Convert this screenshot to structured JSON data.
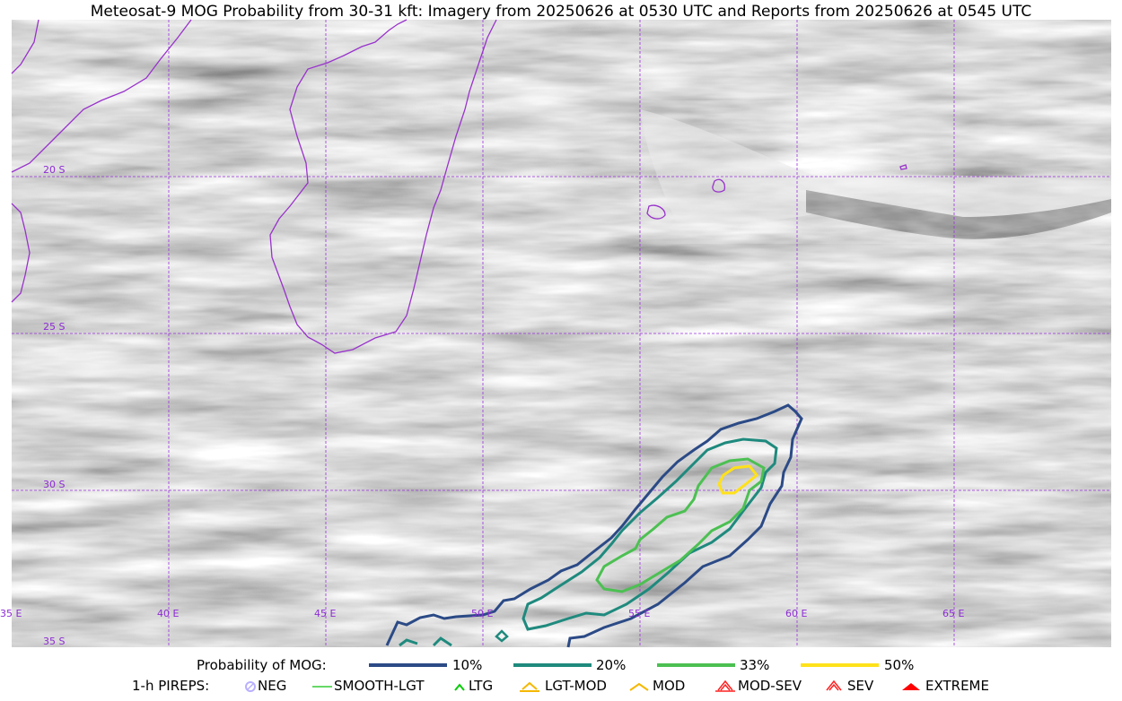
{
  "title": "Meteosat-9 MOG Probability from 30-31 kft: Imagery from 20250626 at 0530 UTC and Reports from 20250626 at 0545 UTC",
  "lat_labels": [
    "20 S",
    "25 S",
    "30 S",
    "35 S"
  ],
  "lon_labels": [
    "35 E",
    "40 E",
    "45 E",
    "50 E",
    "55 E",
    "60 E",
    "65 E"
  ],
  "legend_probability": {
    "heading": "Probability of MOG:",
    "items": [
      {
        "label": "10%",
        "color": "#2b4a86"
      },
      {
        "label": "20%",
        "color": "#1f8a7e"
      },
      {
        "label": "33%",
        "color": "#4cc052"
      },
      {
        "label": "50%",
        "color": "#ffe11a"
      }
    ]
  },
  "legend_pireps": {
    "heading": "1-h PIREPS:",
    "items": [
      {
        "label": "NEG",
        "icon": "neg-circle-icon",
        "color": "#b8b0ff"
      },
      {
        "label": "SMOOTH-LGT",
        "icon": "smooth-line-icon",
        "color": "#33cc33"
      },
      {
        "label": "LTG",
        "icon": "caret-icon",
        "color": "#00cc00"
      },
      {
        "label": "LGT-MOD",
        "icon": "caret-bar-icon",
        "color": "#f5b800"
      },
      {
        "label": "MOD",
        "icon": "caret-icon",
        "color": "#f5b800"
      },
      {
        "label": "MOD-SEV",
        "icon": "double-caret-icon",
        "color": "#ff2020"
      },
      {
        "label": "SEV",
        "icon": "double-caret-icon",
        "color": "#ff2020"
      },
      {
        "label": "EXTREME",
        "icon": "filled-caret-icon",
        "color": "#ff0000"
      }
    ]
  }
}
